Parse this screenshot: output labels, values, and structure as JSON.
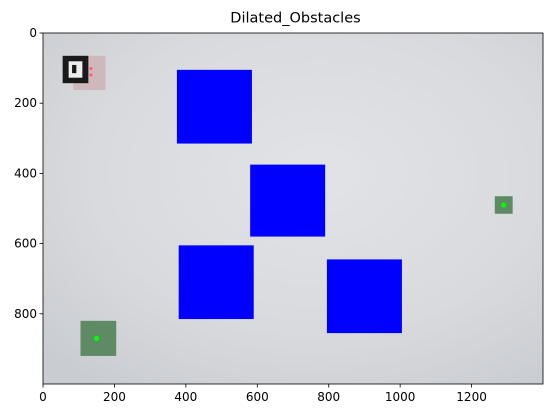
{
  "window": {
    "title": "Dilated_Obstacles"
  },
  "chart_data": {
    "type": "image",
    "title": "Dilated_Obstacles",
    "xlabel": "",
    "ylabel": "",
    "xlim": [
      0,
      1400
    ],
    "ylim": [
      1000,
      0
    ],
    "xticks": [
      0,
      200,
      400,
      600,
      800,
      1000,
      1200
    ],
    "yticks": [
      0,
      200,
      400,
      600,
      800
    ],
    "grid": false,
    "background_photo_color": "#d9dade",
    "obstacle_color": "#0000ff",
    "goal_marker_color": "#00ff00",
    "obstacles": [
      {
        "x0": 375,
        "y0": 105,
        "x1": 585,
        "y1": 315
      },
      {
        "x0": 580,
        "y0": 375,
        "x1": 790,
        "y1": 580
      },
      {
        "x0": 380,
        "y0": 605,
        "x1": 590,
        "y1": 815
      },
      {
        "x0": 795,
        "y0": 645,
        "x1": 1005,
        "y1": 855
      }
    ],
    "markers": [
      {
        "name": "start-marker",
        "x": 150,
        "y": 870
      },
      {
        "name": "goal-marker",
        "x": 1290,
        "y": 490
      }
    ],
    "fiducials": [
      {
        "x0": 55,
        "y0": 65,
        "x1": 175,
        "y1": 195
      },
      {
        "x0": 105,
        "y0": 820,
        "x1": 205,
        "y1": 920
      },
      {
        "x0": 1265,
        "y0": 465,
        "x1": 1315,
        "y1": 515
      }
    ]
  }
}
